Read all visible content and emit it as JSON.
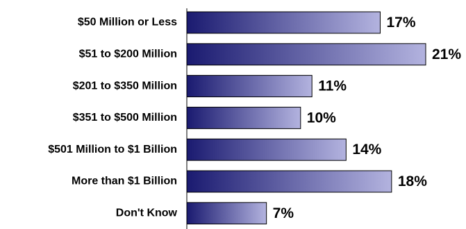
{
  "chart_data": {
    "type": "bar",
    "orientation": "horizontal",
    "title": "",
    "xlabel": "",
    "ylabel": "",
    "categories": [
      "$50 Million or Less",
      "$51 to $200 Million",
      "$201 to $350 Million",
      "$351 to $500 Million",
      "$501 Million to $1 Billion",
      "More than $1 Billion",
      "Don't Know"
    ],
    "values": [
      17,
      21,
      11,
      10,
      14,
      18,
      7
    ],
    "value_labels": [
      "17%",
      "21%",
      "11%",
      "10%",
      "14%",
      "18%",
      "7%"
    ],
    "xlim": [
      0,
      21
    ],
    "grid": false,
    "legend": "none",
    "colors": {
      "bar_start": "#1a1a70",
      "bar_end": "#b3b3df",
      "bar_outline": "#000000",
      "axis": "#000000"
    }
  }
}
